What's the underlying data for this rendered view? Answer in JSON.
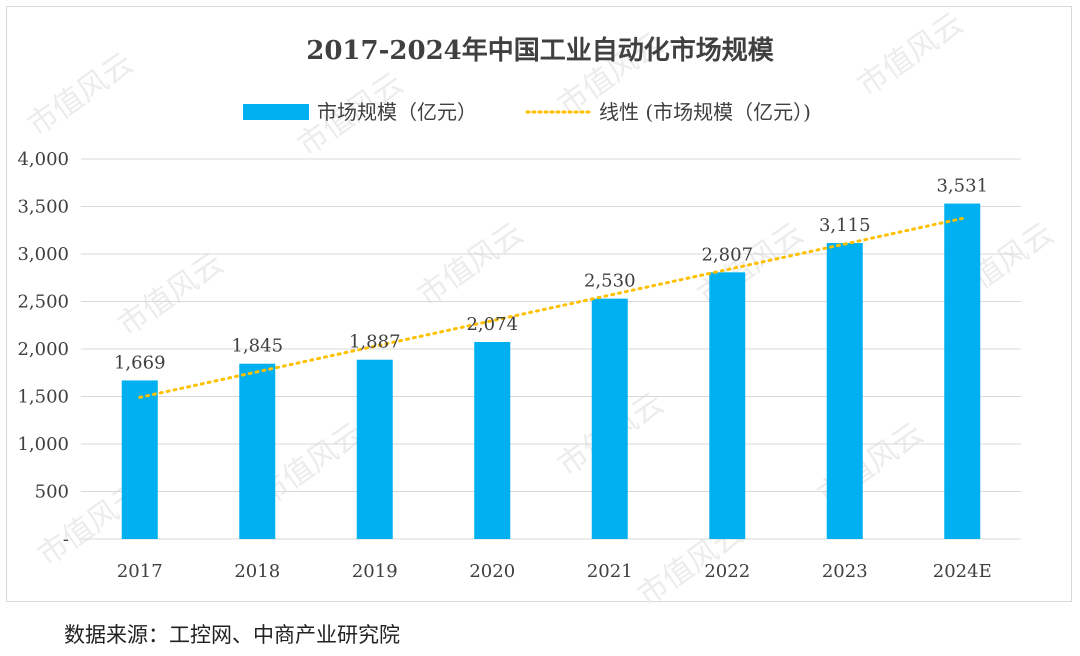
{
  "chart_data": {
    "type": "bar",
    "title": "2017-2024年中国工业自动化市场规模",
    "categories": [
      "2017",
      "2018",
      "2019",
      "2020",
      "2021",
      "2022",
      "2023",
      "2024E"
    ],
    "series": [
      {
        "name": "市场规模（亿元）",
        "values": [
          1669,
          1845,
          1887,
          2074,
          2530,
          2807,
          3115,
          3531
        ]
      }
    ],
    "data_labels": [
      "1,669",
      "1,845",
      "1,887",
      "2,074",
      "2,530",
      "2,807",
      "3,115",
      "3,531"
    ],
    "trendline": {
      "name": "线性 (市场规模（亿元）)",
      "type": "linear"
    },
    "ylim": [
      0,
      4000
    ],
    "yticks": [
      0,
      500,
      1000,
      1500,
      2000,
      2500,
      3000,
      3500,
      4000
    ],
    "ytick_labels": [
      "-",
      "500",
      "1,000",
      "1,500",
      "2,000",
      "2,500",
      "3,000",
      "3,500",
      "4,000"
    ],
    "xlabel": "",
    "ylabel": "",
    "grid": true,
    "legend_position": "top-center",
    "colors": {
      "bar": "#00b0f0",
      "trendline": "#ffc000",
      "grid": "#d9d9d9",
      "text": "#404040"
    }
  },
  "watermark": "市值风云",
  "source_note": "数据来源：工控网、中商产业研究院"
}
